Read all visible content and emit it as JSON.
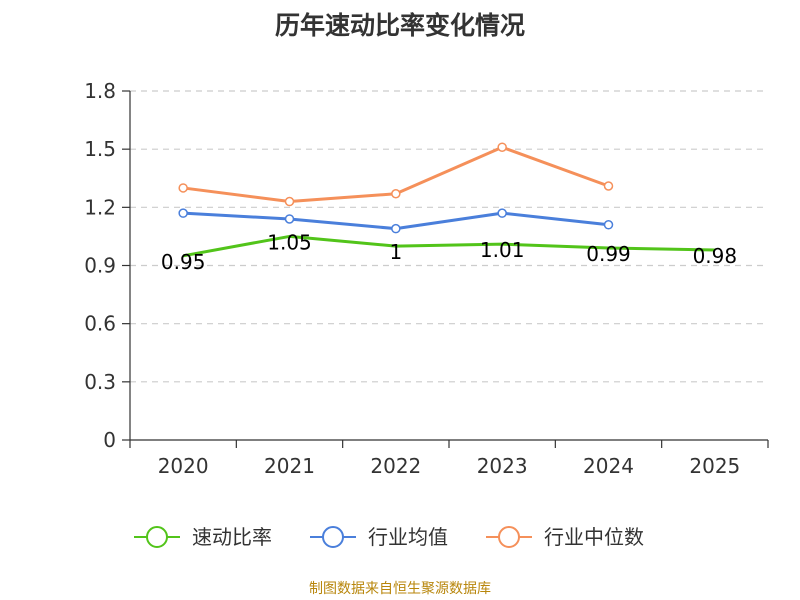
{
  "chart_data": {
    "type": "line",
    "title": "历年速动比率变化情况",
    "categories": [
      "2020",
      "2021",
      "2022",
      "2023",
      "2024",
      "2025"
    ],
    "ylim": [
      0,
      1.8
    ],
    "yticks": [
      0,
      0.3,
      0.6,
      0.9,
      1.2,
      1.5,
      1.8
    ],
    "ytick_labels": [
      "0",
      "0.3",
      "0.6",
      "0.9",
      "1.2",
      "1.5",
      "1.8"
    ],
    "grid": true,
    "legend_position": "bottom",
    "series": [
      {
        "name": "速动比率",
        "color": "#52c41a",
        "values": [
          0.95,
          1.05,
          1.0,
          1.01,
          0.99,
          0.98
        ],
        "labels": [
          "0.95",
          "1.05",
          "1",
          "1.01",
          "0.99",
          "0.98"
        ],
        "show_labels": true,
        "show_markers": false
      },
      {
        "name": "行业均值",
        "color": "#4a7fdb",
        "values": [
          1.17,
          1.14,
          1.09,
          1.17,
          1.11,
          null
        ],
        "show_labels": false,
        "show_markers": true
      },
      {
        "name": "行业中位数",
        "color": "#f5905a",
        "values": [
          1.3,
          1.23,
          1.27,
          1.51,
          1.31,
          null
        ],
        "show_labels": false,
        "show_markers": true
      }
    ]
  },
  "footer": {
    "source": "制图数据来自恒生聚源数据库"
  }
}
